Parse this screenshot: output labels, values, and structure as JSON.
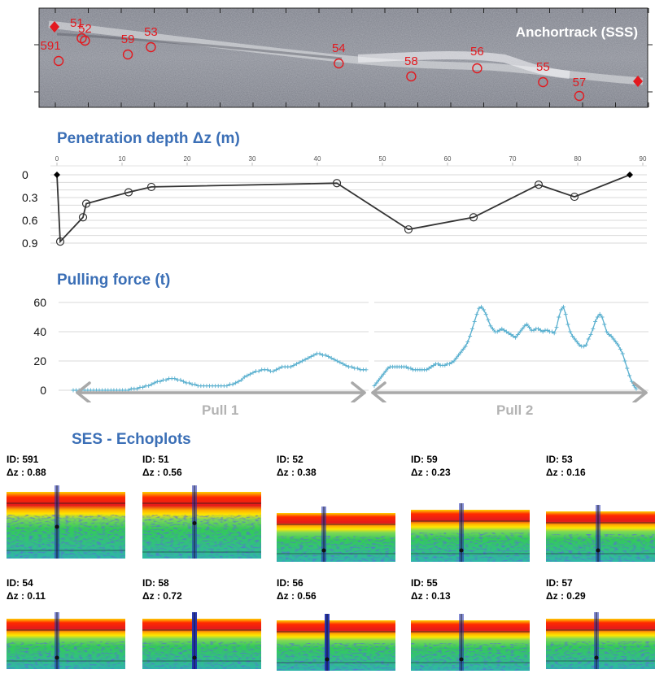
{
  "sss": {
    "title": "Anchortrack (SSS)",
    "markers": [
      {
        "id": "591",
        "pos": 0.5
      },
      {
        "id": "51",
        "pos": 4.0
      },
      {
        "id": "52",
        "pos": 4.5
      },
      {
        "id": "59",
        "pos": 11.0
      },
      {
        "id": "53",
        "pos": 14.5
      },
      {
        "id": "54",
        "pos": 43.0
      },
      {
        "id": "58",
        "pos": 54.0
      },
      {
        "id": "56",
        "pos": 64.0
      },
      {
        "id": "55",
        "pos": 74.0
      },
      {
        "id": "57",
        "pos": 79.5
      }
    ]
  },
  "penetration": {
    "title": "Penetration depth  Δz (m)"
  },
  "pulling": {
    "title": "Pulling force (t)",
    "pull1_label": "Pull 1",
    "pull2_label": "Pull 2"
  },
  "echoplots": {
    "title": "SES - Echoplots",
    "items": [
      {
        "id_label": "ID: 591",
        "dz_label": "Δz : 0.88"
      },
      {
        "id_label": "ID: 51",
        "dz_label": "Δz : 0.56"
      },
      {
        "id_label": "ID: 52",
        "dz_label": "Δz : 0.38"
      },
      {
        "id_label": "ID: 59",
        "dz_label": "Δz : 0.23"
      },
      {
        "id_label": "ID: 53",
        "dz_label": "Δz : 0.16"
      },
      {
        "id_label": "ID: 54",
        "dz_label": " Δz : 0.11"
      },
      {
        "id_label": "ID: 58",
        "dz_label": "Δz : 0.72"
      },
      {
        "id_label": "ID: 56",
        "dz_label": "Δz : 0.56"
      },
      {
        "id_label": "ID: 55",
        "dz_label": "Δz : 0.13"
      },
      {
        "id_label": "ID: 57",
        "dz_label": "Δz : 0.29"
      }
    ]
  },
  "colors": {
    "title_blue": "#3b6fb6",
    "marker_red": "#e3191f",
    "penetration_line": "#333333",
    "force_line": "#5ab0cf",
    "arrow_gray": "#a9a9a9"
  },
  "chart_data": [
    {
      "type": "line",
      "title": "Penetration depth  Δz (m)",
      "x_ticks": [
        0,
        10,
        20,
        30,
        40,
        50,
        60,
        70,
        80,
        90
      ],
      "y_ticks": [
        0,
        0.3,
        0.6,
        0.9
      ],
      "xlim": [
        0,
        90
      ],
      "ylim": [
        0,
        0.9
      ],
      "y_inverted": true,
      "grid": true,
      "points": [
        {
          "x": 0,
          "y": 0,
          "marker": "diamond"
        },
        {
          "x": 0.5,
          "y": 0.88,
          "marker": "circle"
        },
        {
          "x": 4.0,
          "y": 0.56,
          "marker": "circle"
        },
        {
          "x": 4.5,
          "y": 0.38,
          "marker": "circle"
        },
        {
          "x": 11.0,
          "y": 0.23,
          "marker": "circle"
        },
        {
          "x": 14.5,
          "y": 0.16,
          "marker": "circle"
        },
        {
          "x": 43.0,
          "y": 0.11,
          "marker": "circle"
        },
        {
          "x": 54.0,
          "y": 0.72,
          "marker": "circle"
        },
        {
          "x": 64.0,
          "y": 0.56,
          "marker": "circle"
        },
        {
          "x": 74.0,
          "y": 0.13,
          "marker": "circle"
        },
        {
          "x": 79.5,
          "y": 0.29,
          "marker": "circle"
        },
        {
          "x": 88.0,
          "y": 0,
          "marker": "diamond"
        }
      ]
    },
    {
      "type": "line",
      "title": "Pulling force (t)",
      "y_ticks": [
        0,
        20,
        40,
        60
      ],
      "ylim": [
        0,
        60
      ],
      "grid": true,
      "series": [
        {
          "values": [
            0,
            0,
            0,
            0,
            0,
            0,
            0,
            0,
            0,
            0,
            0,
            0,
            0,
            0,
            0,
            0,
            0,
            0,
            0,
            0,
            1,
            1,
            1,
            2,
            2,
            3,
            3,
            4,
            5,
            6,
            6,
            7,
            7,
            8,
            8,
            8,
            7,
            7,
            6,
            5,
            5,
            4,
            4,
            3,
            3,
            3,
            3,
            3,
            3,
            3,
            3,
            3,
            3,
            3,
            4,
            4,
            5,
            6,
            7,
            9,
            10,
            11,
            12,
            13,
            13,
            14,
            14,
            14,
            13,
            13,
            14,
            15,
            16,
            16,
            16,
            16,
            17,
            18,
            19,
            20,
            21,
            22,
            23,
            24,
            25,
            25,
            24,
            24,
            23,
            22,
            21,
            20,
            19,
            18,
            17,
            16,
            16,
            15,
            15,
            14,
            14,
            14
          ]
        },
        {
          "values": [
            3,
            5,
            7,
            9,
            11,
            13,
            15,
            16,
            16,
            16,
            16,
            16,
            16,
            16,
            16,
            15,
            15,
            14,
            14,
            14,
            14,
            14,
            14,
            14,
            15,
            16,
            17,
            18,
            18,
            17,
            17,
            17,
            18,
            18,
            19,
            20,
            22,
            24,
            26,
            28,
            30,
            33,
            37,
            42,
            47,
            52,
            56,
            57,
            55,
            52,
            48,
            44,
            42,
            40,
            40,
            41,
            42,
            41,
            40,
            39,
            38,
            37,
            36,
            38,
            40,
            42,
            44,
            45,
            43,
            41,
            41,
            42,
            42,
            41,
            40,
            41,
            41,
            40,
            40,
            39,
            43,
            50,
            55,
            57,
            52,
            45,
            40,
            37,
            35,
            33,
            31,
            30,
            30,
            31,
            35,
            38,
            42,
            47,
            50,
            52,
            50,
            45,
            40,
            38,
            37,
            35,
            33,
            31,
            28,
            25,
            20,
            15,
            10,
            6,
            3,
            1
          ]
        }
      ]
    }
  ]
}
